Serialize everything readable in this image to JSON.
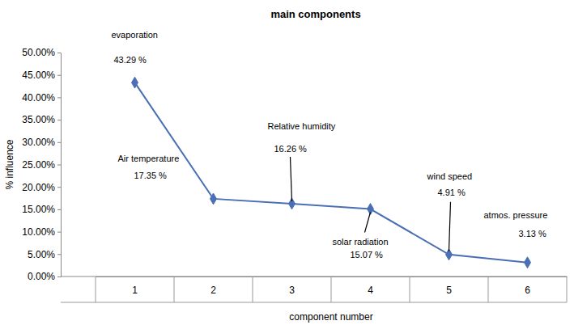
{
  "chart_data": {
    "type": "line",
    "title": "main components",
    "x_label": "component number",
    "y_label": "% influence",
    "categories": [
      "1",
      "2",
      "3",
      "4",
      "5",
      "6"
    ],
    "values": [
      43.29,
      17.35,
      16.26,
      15.07,
      4.91,
      3.13
    ],
    "value_labels": [
      "43.29 %",
      "17.35 %",
      "16.26 %",
      "15.07 %",
      "4.91 %",
      "3.13 %"
    ],
    "annotations": [
      "evaporation",
      "Air temperature",
      "Relative humidity",
      "solar radiation",
      "wind speed",
      "atmos. pressure"
    ],
    "data_labels": true,
    "color": "#4a6fb5",
    "marker": "diamond",
    "grid": false,
    "ylim": [
      0,
      50
    ],
    "yticks": [
      {
        "value": 0,
        "label": "0.00%"
      },
      {
        "value": 5,
        "label": "5.00%"
      },
      {
        "value": 10,
        "label": "10.00%"
      },
      {
        "value": 15,
        "label": "15.00%"
      },
      {
        "value": 20,
        "label": "20.00%"
      },
      {
        "value": 25,
        "label": "25.00%"
      },
      {
        "value": 30,
        "label": "30.00%"
      },
      {
        "value": 35,
        "label": "35.00%"
      },
      {
        "value": 40,
        "label": "40.00%"
      },
      {
        "value": 45,
        "label": "45.00%"
      },
      {
        "value": 50,
        "label": "50.00%"
      }
    ]
  }
}
